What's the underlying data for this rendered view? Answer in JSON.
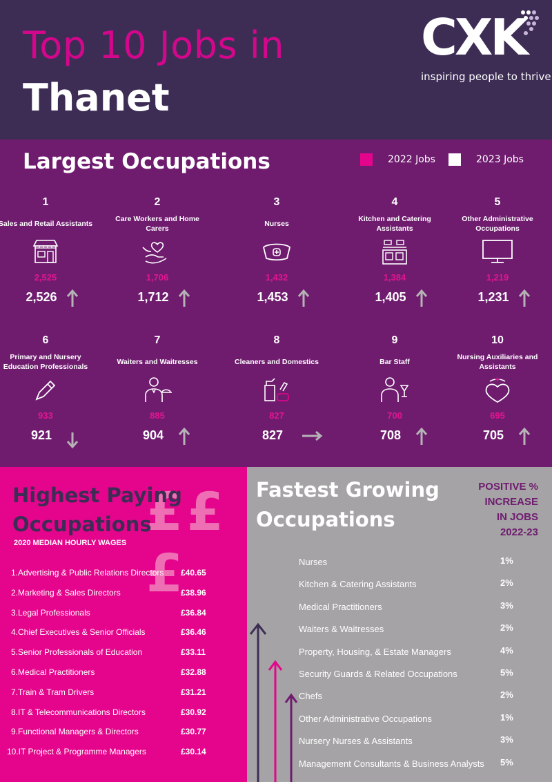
{
  "header": {
    "title_line1": "Top 10 Jobs in",
    "title_line2": "Thanet",
    "logo_text": "CXK",
    "logo_tagline": "inspiring people to thrive"
  },
  "largest": {
    "title": "Largest Occupations",
    "legend": [
      {
        "label": "2022 Jobs",
        "color": "#e5058c"
      },
      {
        "label": "2023 Jobs",
        "color": "#ffffff"
      }
    ],
    "items": [
      {
        "rank": "1",
        "name": "Sales and Retail Assistants",
        "icon": "shop-icon",
        "jobs_2022": "2,525",
        "jobs_2023": "2,526",
        "trend": "up"
      },
      {
        "rank": "2",
        "name": "Care Workers and Home Carers",
        "icon": "caring-hand-icon",
        "jobs_2022": "1,706",
        "jobs_2023": "1,712",
        "trend": "up"
      },
      {
        "rank": "3",
        "name": "Nurses",
        "icon": "nurse-cap-icon",
        "jobs_2022": "1,432",
        "jobs_2023": "1,453",
        "trend": "up"
      },
      {
        "rank": "4",
        "name": "Kitchen and Catering Assistants",
        "icon": "kitchen-icon",
        "jobs_2022": "1,384",
        "jobs_2023": "1,405",
        "trend": "up"
      },
      {
        "rank": "5",
        "name": "Other Administrative Occupations",
        "icon": "monitor-icon",
        "jobs_2022": "1,219",
        "jobs_2023": "1,231",
        "trend": "up"
      },
      {
        "rank": "6",
        "name": "Primary and Nursery Education Professionals",
        "icon": "pencil-icon",
        "jobs_2022": "933",
        "jobs_2023": "921",
        "trend": "down"
      },
      {
        "rank": "7",
        "name": "Waiters and Waitresses",
        "icon": "waiter-icon",
        "jobs_2022": "885",
        "jobs_2023": "904",
        "trend": "up"
      },
      {
        "rank": "8",
        "name": "Cleaners and Domestics",
        "icon": "cleaning-supplies-icon",
        "jobs_2022": "827",
        "jobs_2023": "827",
        "trend": "flat"
      },
      {
        "rank": "9",
        "name": "Bar Staff",
        "icon": "bartender-icon",
        "jobs_2022": "700",
        "jobs_2023": "708",
        "trend": "up"
      },
      {
        "rank": "10",
        "name": "Nursing Auxiliaries and Assistants",
        "icon": "nurse-heart-icon",
        "jobs_2022": "695",
        "jobs_2023": "705",
        "trend": "up"
      }
    ]
  },
  "highest": {
    "title_line1": "Highest Paying",
    "title_line2": "Occupations",
    "pounds": "£££",
    "subtitle": "2020 MEDIAN HOURLY WAGES",
    "rows": [
      {
        "name": "1.Advertising & Public Relations Directors",
        "wage": "£40.65"
      },
      {
        "name": "2.Marketing & Sales Directors",
        "wage": "£38.96"
      },
      {
        "name": "3.Legal Professionals",
        "wage": "£36.84"
      },
      {
        "name": "4.Chief Executives & Senior Officials",
        "wage": "£36.46"
      },
      {
        "name": "5.Senior Professionals of Education",
        "wage": "£33.11"
      },
      {
        "name": "6.Medical Practitioners",
        "wage": "£32.88"
      },
      {
        "name": "7.Train & Tram Drivers",
        "wage": "£31.21"
      },
      {
        "name": "8.IT & Telecommunications Directors",
        "wage": "£30.92"
      },
      {
        "name": "9.Functional Managers & Directors",
        "wage": "£30.77"
      },
      {
        "name": "10.IT Project & Programme Managers",
        "wage": "£30.14"
      }
    ]
  },
  "fastest": {
    "title_line1": "Fastest Growing",
    "title_line2": "Occupations",
    "note": [
      "POSITIVE %",
      "INCREASE",
      "IN JOBS",
      "2022-23"
    ],
    "rows": [
      {
        "name": "Nurses",
        "pct": "1%"
      },
      {
        "name": "Kitchen & Catering Assistants",
        "pct": "2%"
      },
      {
        "name": "Medical Practitioners",
        "pct": "3%"
      },
      {
        "name": "Waiters & Waitresses",
        "pct": "2%"
      },
      {
        "name": "Property, Housing, & Estate Managers",
        "pct": "4%"
      },
      {
        "name": "Security Guards & Related Occupations",
        "pct": "5%"
      },
      {
        "name": "Chefs",
        "pct": "2%"
      },
      {
        "name": "Other Administrative Occupations",
        "pct": "1%"
      },
      {
        "name": "Nursery Nurses & Assistants",
        "pct": "3%"
      },
      {
        "name": "Management Consultants & Business Analysts",
        "pct": "5%"
      }
    ]
  }
}
